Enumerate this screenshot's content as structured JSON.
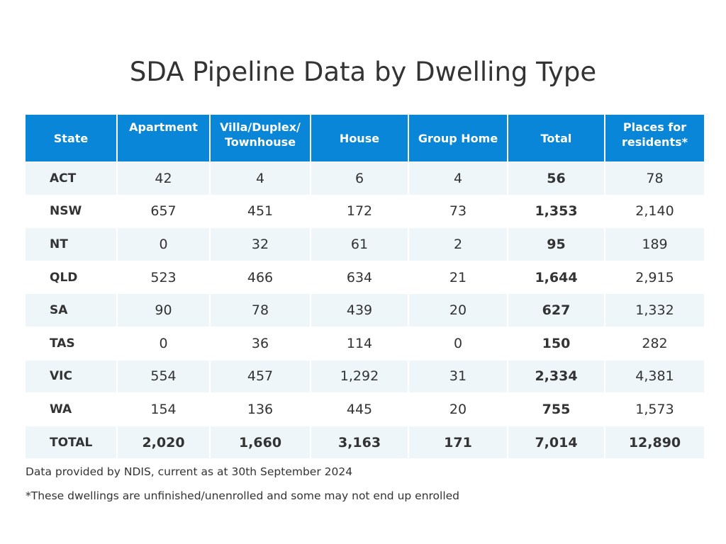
{
  "title": "SDA Pipeline Data by Dwelling Type",
  "colors": {
    "header_bg": "#0a86d8",
    "header_text": "#ffffff",
    "stripe_bg": "#eef6fa"
  },
  "chart_data": {
    "type": "table",
    "title": "SDA Pipeline Data by Dwelling Type",
    "columns": [
      "State",
      "Apartment",
      "Villa/Duplex/ Townhouse",
      "House",
      "Group Home",
      "Total",
      "Places for residents*"
    ],
    "rows": [
      [
        "ACT",
        "42",
        "4",
        "6",
        "4",
        "56",
        "78"
      ],
      [
        "NSW",
        "657",
        "451",
        "172",
        "73",
        "1,353",
        "2,140"
      ],
      [
        "NT",
        "0",
        "32",
        "61",
        "2",
        "95",
        "189"
      ],
      [
        "QLD",
        "523",
        "466",
        "634",
        "21",
        "1,644",
        "2,915"
      ],
      [
        "SA",
        "90",
        "78",
        "439",
        "20",
        "627",
        "1,332"
      ],
      [
        "TAS",
        "0",
        "36",
        "114",
        "0",
        "150",
        "282"
      ],
      [
        "VIC",
        "554",
        "457",
        "1,292",
        "31",
        "2,334",
        "4,381"
      ],
      [
        "WA",
        "154",
        "136",
        "445",
        "20",
        "755",
        "1,573"
      ],
      [
        "TOTAL",
        "2,020",
        "1,660",
        "3,163",
        "171",
        "7,014",
        "12,890"
      ]
    ]
  },
  "footnotes": {
    "source": "Data provided by NDIS, current as at 30th September 2024",
    "asterisk": "*These dwellings are unfinished/unenrolled and some may not end up enrolled"
  }
}
